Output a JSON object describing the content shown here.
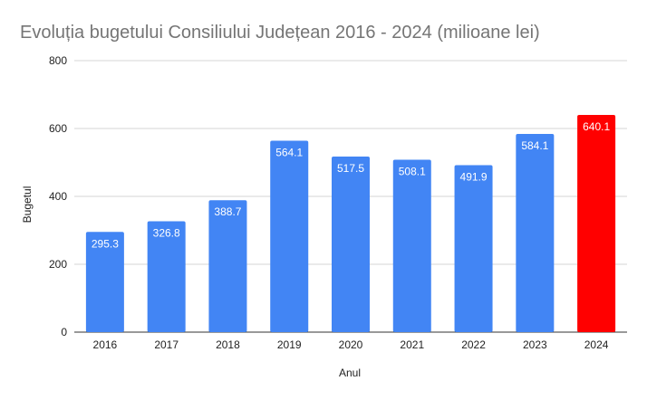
{
  "chart_data": {
    "type": "bar",
    "title": "Evoluția bugetului Consiliului Județean 2016 - 2024 (milioane lei)",
    "xlabel": "Anul",
    "ylabel": "Bugetul",
    "categories": [
      "2016",
      "2017",
      "2018",
      "2019",
      "2020",
      "2021",
      "2022",
      "2023",
      "2024"
    ],
    "values": [
      295.3,
      326.8,
      388.7,
      564.1,
      517.5,
      508.1,
      491.9,
      584.1,
      640.1
    ],
    "value_labels": [
      "295.3",
      "326.8",
      "388.7",
      "564.1",
      "517.5",
      "508.1",
      "491.9",
      "584.1",
      "640.1"
    ],
    "ylim": [
      0,
      800
    ],
    "yticks": [
      "0",
      "200",
      "400",
      "600",
      "800"
    ],
    "grid": true,
    "legend": "none",
    "colors": {
      "bar": "#4285f4",
      "highlight": "#ff0000",
      "highlight_category": "2024"
    }
  }
}
